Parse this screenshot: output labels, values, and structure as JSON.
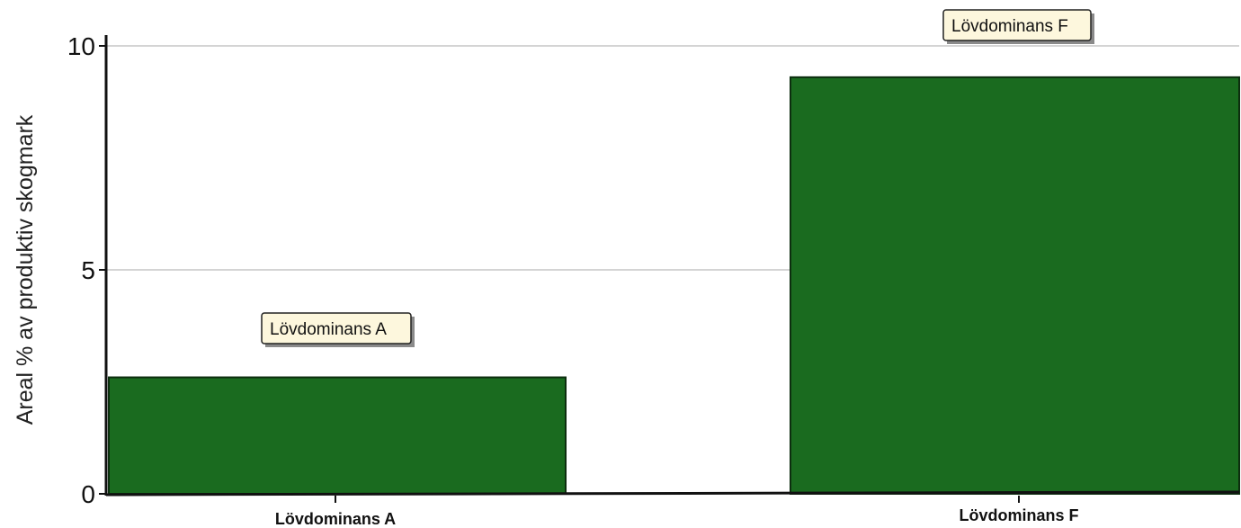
{
  "chart_data": {
    "type": "bar",
    "categories": [
      "Lövdominans A",
      "Lövdominans F"
    ],
    "values": [
      2.6,
      9.3
    ],
    "annotations": [
      "Lövdominans A",
      "Lövdominans F"
    ],
    "title": "",
    "xlabel": "",
    "ylabel": "Areal % av produktiv skogmark",
    "ylim": [
      0,
      10
    ],
    "yticks": [
      0,
      5,
      10
    ],
    "ytick_labels": [
      "0",
      "5",
      "10"
    ],
    "grid": true,
    "bar_color": "#1a6b1f",
    "callout_color": "#fdf7dd"
  }
}
